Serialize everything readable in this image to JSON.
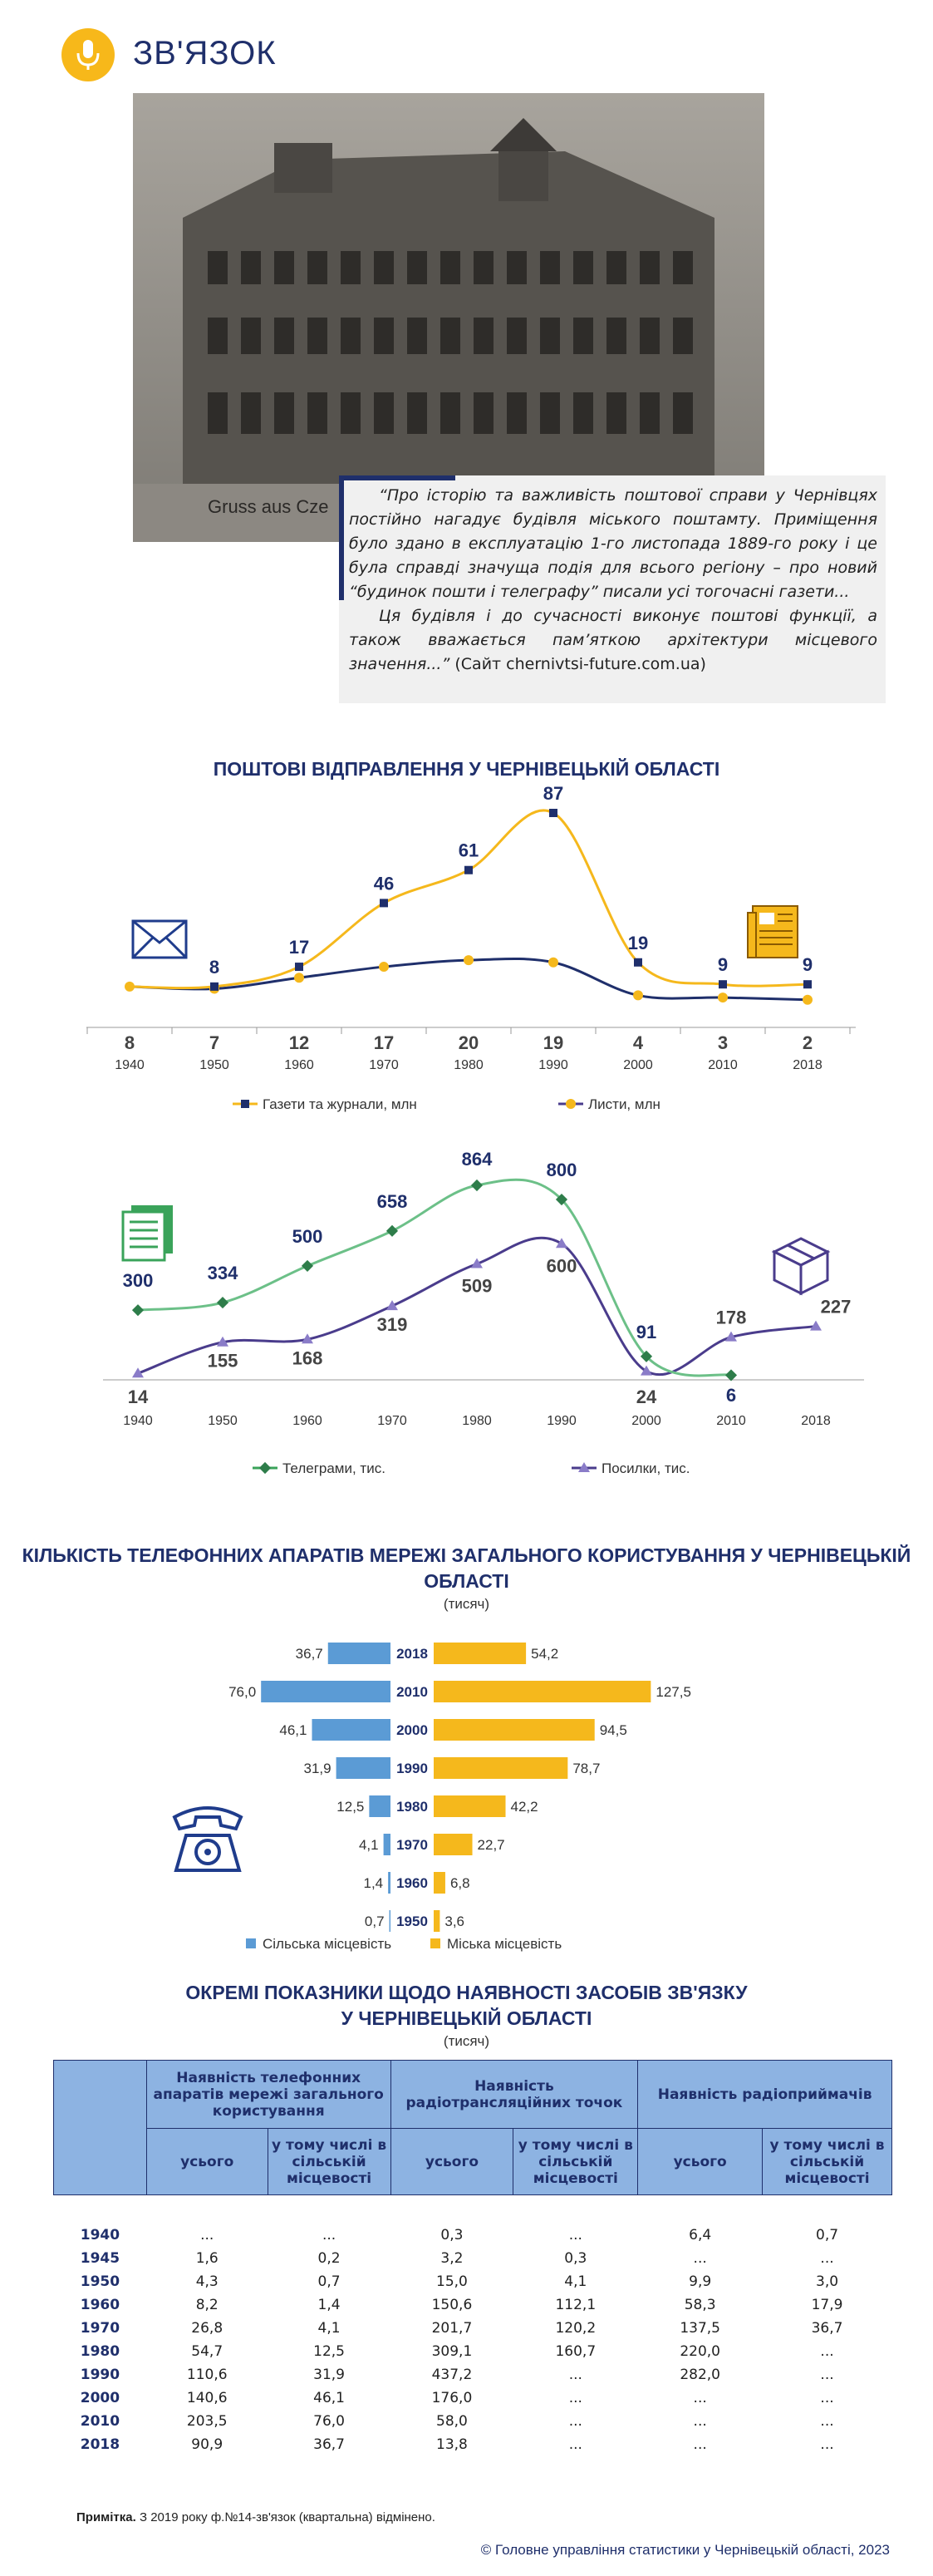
{
  "page": {
    "title": "ЗВ'ЯЗОК",
    "photo_caption": "Gruss aus Cze",
    "quote_p1": "“Про історію та важливість поштової справи у Чернівцях постійно нагадує будівля міського поштамту. Приміщення було здано в експлуатацію 1-го листопада 1889-го року і це була справді значуща подія для всього регіону – про новий “будинок пошти і телеграфу” писали усі тогочасні газети...",
    "quote_p2": "Ця будівля і до сучасності виконує поштові функції, а також вважається пам’яткою архітектури місцевого значення...”",
    "quote_source": "(Сайт chernivtsi-future.com.ua)",
    "note_label": "Примітка.",
    "note_text": "З 2019 року ф.№14-зв'язок (квартальна) відмінено.",
    "footer": "© Головне управління статистики у Чернівецькій області, 2023"
  },
  "colors": {
    "navy": "#1f2f6b",
    "yellow": "#f5b81c",
    "green": "#3aa35a",
    "purple": "#4a3c8c",
    "blue": "#5b9bd5",
    "table_header": "#8db3e2"
  },
  "chart_data": [
    {
      "type": "line",
      "title": "ПОШТОВІ ВІДПРАВЛЕННЯ У ЧЕРНІВЕЦЬКІЙ ОБЛАСТІ",
      "x": [
        "1940",
        "1950",
        "1960",
        "1970",
        "1980",
        "1990",
        "2000",
        "2010",
        "2018"
      ],
      "series": [
        {
          "name": "Газети та журнали, млн",
          "values": [
            8,
            8,
            17,
            46,
            61,
            87,
            19,
            9,
            9
          ]
        },
        {
          "name": "Листи, млн",
          "values": [
            8,
            7,
            12,
            17,
            20,
            19,
            4,
            3,
            2
          ]
        }
      ],
      "data_labels": {
        "Газети та журнали, млн": [
          "",
          "8",
          "17",
          "46",
          "61",
          "87",
          "19",
          "9",
          "9"
        ],
        "Листи, млн": [
          "8",
          "7",
          "12",
          "17",
          "20",
          "19",
          "4",
          "3",
          "2"
        ]
      },
      "legend": "bottom",
      "icons": [
        "envelope-icon",
        "newspaper-icon"
      ]
    },
    {
      "type": "line",
      "x": [
        "1940",
        "1950",
        "1960",
        "1970",
        "1980",
        "1990",
        "2000",
        "2010",
        "2018"
      ],
      "series": [
        {
          "name": "Телеграми, тис.",
          "values": [
            300,
            334,
            500,
            658,
            864,
            800,
            91,
            6,
            null
          ]
        },
        {
          "name": "Посилки, тис.",
          "values": [
            14,
            155,
            168,
            319,
            509,
            600,
            24,
            178,
            227
          ]
        }
      ],
      "legend": "bottom",
      "icons": [
        "document-icon",
        "parcel-icon"
      ]
    },
    {
      "type": "bar",
      "title": "КІЛЬКІСТЬ ТЕЛЕФОННИХ АПАРАТІВ МЕРЕЖІ ЗАГАЛЬНОГО КОРИСТУВАННЯ У ЧЕРНІВЕЦЬКІЙ ОБЛАСТІ",
      "subtitle": "(тисяч)",
      "categories": [
        "2018",
        "2010",
        "2000",
        "1990",
        "1980",
        "1970",
        "1960",
        "1950"
      ],
      "series": [
        {
          "name": "Сільська місцевість",
          "values": [
            36.7,
            76.0,
            46.1,
            31.9,
            12.5,
            4.1,
            1.4,
            0.7
          ],
          "labels": [
            "36,7",
            "76,0",
            "46,1",
            "31,9",
            "12,5",
            "4,1",
            "1,4",
            "0,7"
          ]
        },
        {
          "name": "Міська місцевість",
          "values": [
            54.2,
            127.5,
            94.5,
            78.7,
            42.2,
            22.7,
            6.8,
            3.6
          ],
          "labels": [
            "54,2",
            "127,5",
            "94,5",
            "78,7",
            "42,2",
            "22,7",
            "6,8",
            "3,6"
          ]
        }
      ],
      "legend": "bottom",
      "icons": [
        "telephone-icon"
      ]
    },
    {
      "type": "table",
      "title": "ОКРЕМІ ПОКАЗНИКИ ЩОДО НАЯВНОСТІ ЗАСОБІВ ЗВ'ЯЗКУ У ЧЕРНІВЕЦЬКІЙ ОБЛАСТІ",
      "subtitle": "(тисяч)",
      "group_headers": [
        "Наявність телефонних апаратів мережі загального користування",
        "Наявність радіотрансляційних точок",
        "Наявність радіоприймачів"
      ],
      "sub_headers": [
        "усього",
        "у тому числі в сільській місцевості",
        "усього",
        "у тому числі в сільській місцевості",
        "усього",
        "у тому числі в сільській місцевості"
      ],
      "rows": [
        [
          "1940",
          "...",
          "...",
          "0,3",
          "...",
          "6,4",
          "0,7"
        ],
        [
          "1945",
          "1,6",
          "0,2",
          "3,2",
          "0,3",
          "...",
          "..."
        ],
        [
          "1950",
          "4,3",
          "0,7",
          "15,0",
          "4,1",
          "9,9",
          "3,0"
        ],
        [
          "1960",
          "8,2",
          "1,4",
          "150,6",
          "112,1",
          "58,3",
          "17,9"
        ],
        [
          "1970",
          "26,8",
          "4,1",
          "201,7",
          "120,2",
          "137,5",
          "36,7"
        ],
        [
          "1980",
          "54,7",
          "12,5",
          "309,1",
          "160,7",
          "220,0",
          "..."
        ],
        [
          "1990",
          "110,6",
          "31,9",
          "437,2",
          "...",
          "282,0",
          "..."
        ],
        [
          "2000",
          "140,6",
          "46,1",
          "176,0",
          "...",
          "...",
          "..."
        ],
        [
          "2010",
          "203,5",
          "76,0",
          "58,0",
          "...",
          "...",
          "..."
        ],
        [
          "2018",
          "90,9",
          "36,7",
          "13,8",
          "...",
          "...",
          "..."
        ]
      ]
    }
  ]
}
